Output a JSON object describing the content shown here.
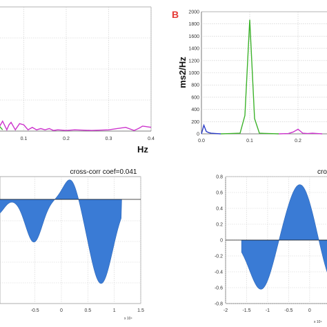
{
  "chart_data": [
    {
      "id": "spectrum-a",
      "type": "line",
      "xlabel": "Hz",
      "xlim": [
        0,
        0.4
      ],
      "x_ticks": [
        "0.1",
        "0.2",
        "0.3",
        "0.4"
      ],
      "series": [
        {
          "color": "#3cb22a",
          "x": [
            0,
            0.005,
            0.01,
            0.015,
            0.02,
            0.025,
            0.03,
            0.035,
            0.04,
            0.05
          ],
          "y": [
            0.3,
            0.7,
            0.85,
            0.2,
            0.75,
            0.65,
            0.1,
            0.02,
            0.05,
            0.01
          ]
        },
        {
          "color": "#cc33cc",
          "x": [
            0.04,
            0.05,
            0.06,
            0.065,
            0.07,
            0.08,
            0.09,
            0.1,
            0.11,
            0.12,
            0.13,
            0.14,
            0.15,
            0.16,
            0.17,
            0.18,
            0.2,
            0.22,
            0.26,
            0.3,
            0.34,
            0.36,
            0.37,
            0.38,
            0.4
          ],
          "y": [
            0.02,
            0.08,
            0.01,
            0.05,
            0.07,
            0.01,
            0.06,
            0.05,
            0.01,
            0.03,
            0.01,
            0.02,
            0.01,
            0.02,
            0.005,
            0.01,
            0.005,
            0.01,
            0.005,
            0.01,
            0.03,
            0.005,
            0.02,
            0.04,
            0.03
          ]
        }
      ]
    },
    {
      "id": "spectrum-b",
      "type": "line",
      "panel_letter": "B",
      "ylabel": "ms2/Hz",
      "xlim": [
        0,
        0.25
      ],
      "ylim": [
        0,
        2000
      ],
      "y_ticks": [
        0,
        200,
        400,
        600,
        800,
        1000,
        1200,
        1400,
        1600,
        1800,
        2000
      ],
      "x_ticks": [
        "0.0",
        "0.1",
        "0.2"
      ],
      "series": [
        {
          "color": "#2a3cc8",
          "x": [
            0,
            0.005,
            0.01,
            0.015,
            0.02,
            0.03,
            0.04
          ],
          "y": [
            0,
            140,
            40,
            20,
            10,
            5,
            0
          ]
        },
        {
          "color": "#3cb22a",
          "x": [
            0.04,
            0.06,
            0.08,
            0.09,
            0.1,
            0.11,
            0.12,
            0.14,
            0.16
          ],
          "y": [
            0,
            5,
            10,
            300,
            1870,
            250,
            10,
            5,
            0
          ]
        },
        {
          "color": "#cc33cc",
          "x": [
            0.16,
            0.18,
            0.19,
            0.2,
            0.21,
            0.22,
            0.23,
            0.24,
            0.25
          ],
          "y": [
            0,
            5,
            30,
            75,
            10,
            5,
            10,
            5,
            0
          ]
        }
      ]
    },
    {
      "id": "crosscorr-a",
      "type": "area",
      "title": "cross-corr coef=0.041",
      "xlim": [
        -1.5,
        1.5
      ],
      "x_ticks": [
        "-0.5",
        "0",
        "0.5",
        "1",
        "1.5"
      ],
      "x_exponent": "x 10⁴",
      "color": "#3a7bd5"
    },
    {
      "id": "crosscorr-b",
      "type": "area",
      "title": "cross",
      "xlim": [
        -2,
        1.2
      ],
      "ylim": [
        -0.8,
        0.8
      ],
      "y_ticks": [
        "0.8",
        "0.6",
        "0.4",
        "0.2",
        "0",
        "-0.2",
        "-0.4",
        "-0.6",
        "-0.8"
      ],
      "x_ticks": [
        "-2",
        "-1.5",
        "-1",
        "-0.5",
        "0",
        "0.5",
        "1"
      ],
      "x_exponent": "x 10⁴",
      "color": "#3a7bd5"
    }
  ]
}
